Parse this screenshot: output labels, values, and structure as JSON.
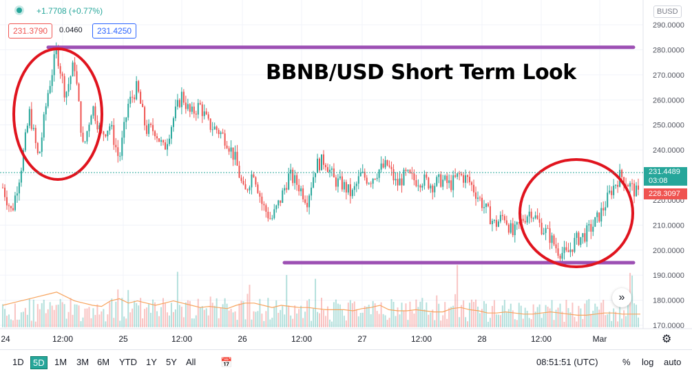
{
  "header": {
    "change": "+1.7708 (+0.77%)",
    "sell_price": "231.3790",
    "spread": "0.0460",
    "buy_price": "231.4250",
    "currency": "BUSD"
  },
  "annotation": {
    "title": "BBNB/USD Short Term Look",
    "line_color": "#9c4fb3",
    "circle_color": "#e0141e"
  },
  "price_tags": {
    "last_price": "231.4489",
    "countdown": "03:08",
    "prev_price": "228.3097"
  },
  "toolbar": {
    "timeframes": [
      "1D",
      "5D",
      "1M",
      "3M",
      "6M",
      "YTD",
      "1Y",
      "5Y",
      "All"
    ],
    "active_timeframe": "5D",
    "clock": "08:51:51 (UTC)",
    "percent": "%",
    "log": "log",
    "auto": "auto"
  },
  "colors": {
    "up": "#26a69a",
    "down": "#ef5350",
    "volume_ma": "#f7a35c",
    "grid": "#f0f3fa"
  },
  "chart_data": {
    "type": "candlestick",
    "y_ticks": [
      "290.0000",
      "280.0000",
      "270.0000",
      "260.0000",
      "250.0000",
      "240.0000",
      "230.0000",
      "220.0000",
      "210.0000",
      "200.0000",
      "190.0000",
      "180.0000",
      "170.0000"
    ],
    "ylim": [
      170,
      292
    ],
    "x_ticks": [
      "24",
      "12:00",
      "25",
      "12:00",
      "26",
      "12:00",
      "27",
      "12:00",
      "28",
      "12:00",
      "Mar"
    ],
    "price_path": [
      [
        0,
        225
      ],
      [
        1,
        215
      ],
      [
        2,
        232
      ],
      [
        3,
        255
      ],
      [
        4,
        236
      ],
      [
        5,
        262
      ],
      [
        6,
        280
      ],
      [
        7,
        262
      ],
      [
        8,
        275
      ],
      [
        9,
        240
      ],
      [
        10,
        258
      ],
      [
        11,
        246
      ],
      [
        12,
        250
      ],
      [
        13,
        236
      ],
      [
        14,
        258
      ],
      [
        15,
        265
      ],
      [
        16,
        248
      ],
      [
        17,
        248
      ],
      [
        18,
        240
      ],
      [
        19,
        252
      ],
      [
        20,
        262
      ],
      [
        21,
        254
      ],
      [
        22,
        258
      ],
      [
        23,
        250
      ],
      [
        24,
        248
      ],
      [
        25,
        244
      ],
      [
        26,
        236
      ],
      [
        27,
        222
      ],
      [
        28,
        232
      ],
      [
        29,
        218
      ],
      [
        30,
        212
      ],
      [
        31,
        220
      ],
      [
        32,
        230
      ],
      [
        33,
        226
      ],
      [
        34,
        220
      ],
      [
        35,
        234
      ],
      [
        36,
        236
      ],
      [
        37,
        228
      ],
      [
        38,
        226
      ],
      [
        39,
        222
      ],
      [
        40,
        230
      ],
      [
        41,
        228
      ],
      [
        42,
        232
      ],
      [
        43,
        234
      ],
      [
        44,
        226
      ],
      [
        45,
        230
      ],
      [
        46,
        228
      ],
      [
        47,
        228
      ],
      [
        48,
        226
      ],
      [
        49,
        228
      ],
      [
        50,
        226
      ],
      [
        51,
        230
      ],
      [
        52,
        228
      ],
      [
        53,
        222
      ],
      [
        54,
        216
      ],
      [
        55,
        210
      ],
      [
        56,
        214
      ],
      [
        57,
        206
      ],
      [
        58,
        212
      ],
      [
        59,
        216
      ],
      [
        60,
        210
      ],
      [
        61,
        206
      ],
      [
        62,
        200
      ],
      [
        63,
        198
      ],
      [
        64,
        204
      ],
      [
        65,
        206
      ],
      [
        66,
        210
      ],
      [
        67,
        216
      ],
      [
        68,
        224
      ],
      [
        69,
        230
      ],
      [
        70,
        226
      ],
      [
        71,
        222
      ]
    ],
    "resistance": 281,
    "support": 195,
    "volume_ma": [
      20,
      22,
      24,
      26,
      28,
      30,
      32,
      28,
      24,
      22,
      20,
      19,
      24,
      26,
      22,
      24,
      22,
      20,
      22,
      24,
      22,
      20,
      18,
      19,
      18,
      17,
      20,
      22,
      22,
      20,
      18,
      20,
      19,
      18,
      18,
      17,
      16,
      16,
      16,
      15,
      17,
      18,
      20,
      16,
      15,
      15,
      16,
      15,
      14,
      14,
      17,
      18,
      16,
      15,
      13,
      13,
      14,
      13,
      12,
      12,
      13,
      14,
      13,
      12,
      11,
      11,
      12,
      13,
      13,
      12,
      12,
      12
    ]
  }
}
